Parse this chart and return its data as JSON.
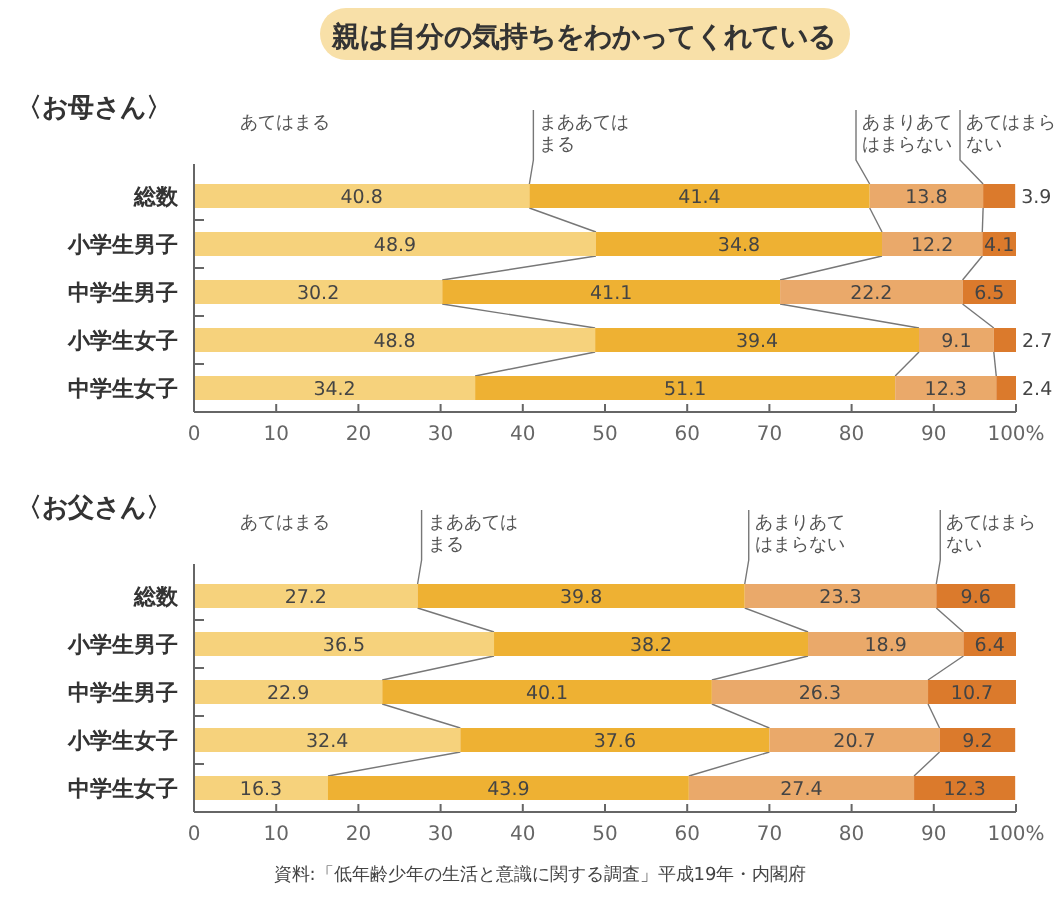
{
  "chart_data": [
    {
      "type": "bar",
      "orientation": "horizontal",
      "stacked": true,
      "title": "親は自分の気持ちをわかってくれている",
      "subtitle": "〈お母さん〉",
      "categories": [
        "総数",
        "小学生男子",
        "中学生男子",
        "小学生女子",
        "中学生女子"
      ],
      "series": [
        {
          "name": "あてはまる",
          "color": "#f6d27c",
          "values": [
            40.8,
            48.9,
            30.2,
            48.8,
            34.2
          ]
        },
        {
          "name": "まああてはまる",
          "color": "#eeb133",
          "values": [
            41.4,
            34.8,
            41.1,
            39.4,
            51.1
          ]
        },
        {
          "name": "あまりあてはまらない",
          "color": "#eaa96a",
          "values": [
            13.8,
            12.2,
            22.2,
            9.1,
            12.3
          ]
        },
        {
          "name": "あてはまらない",
          "color": "#db7a2c",
          "values": [
            3.9,
            4.1,
            6.5,
            2.7,
            2.4
          ]
        }
      ],
      "xlim": [
        0,
        100
      ],
      "xticks": [
        0,
        10,
        20,
        30,
        40,
        50,
        60,
        70,
        80,
        90,
        {
          "value": 100,
          "label": "100%"
        }
      ],
      "data_labels": true,
      "grid": false
    },
    {
      "type": "bar",
      "orientation": "horizontal",
      "stacked": true,
      "subtitle": "〈お父さん〉",
      "categories": [
        "総数",
        "小学生男子",
        "中学生男子",
        "小学生女子",
        "中学生女子"
      ],
      "series": [
        {
          "name": "あてはまる",
          "color": "#f6d27c",
          "values": [
            27.2,
            36.5,
            22.9,
            32.4,
            16.3
          ]
        },
        {
          "name": "まああてはまる",
          "color": "#eeb133",
          "values": [
            39.8,
            38.2,
            40.1,
            37.6,
            43.9
          ]
        },
        {
          "name": "あまりあてはまらない",
          "color": "#eaa96a",
          "values": [
            23.3,
            18.9,
            26.3,
            20.7,
            27.4
          ]
        },
        {
          "name": "あてはまらない",
          "color": "#db7a2c",
          "values": [
            9.6,
            6.4,
            10.7,
            9.2,
            12.3
          ]
        }
      ],
      "xlim": [
        0,
        100
      ],
      "xticks": [
        0,
        10,
        20,
        30,
        40,
        50,
        60,
        70,
        80,
        90,
        {
          "value": 100,
          "label": "100%"
        }
      ],
      "data_labels": true,
      "grid": false,
      "annotations": [
        "資料:「低年齢少年の生活と意識に関する調査」平成19年・内閣府"
      ]
    }
  ]
}
